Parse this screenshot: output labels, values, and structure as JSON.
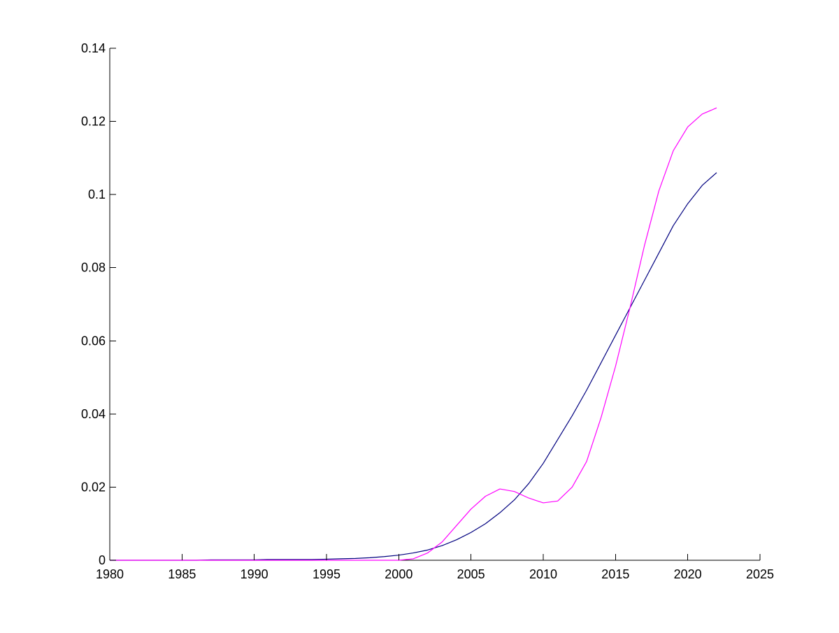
{
  "chart_data": {
    "type": "line",
    "title": "",
    "xlabel": "",
    "ylabel": "",
    "xlim": [
      1980,
      2025
    ],
    "ylim": [
      0,
      0.14
    ],
    "grid": false,
    "x_ticks": [
      1980,
      1985,
      1990,
      1995,
      2000,
      2005,
      2010,
      2015,
      2020,
      2025
    ],
    "x_tick_labels": [
      "1980",
      "1985",
      "1990",
      "1995",
      "2000",
      "2005",
      "2010",
      "2015",
      "2020",
      "2025"
    ],
    "y_ticks": [
      0,
      0.02,
      0.04,
      0.06,
      0.08,
      0.1,
      0.12,
      0.14
    ],
    "y_tick_labels": [
      "0",
      "0.02",
      "0.04",
      "0.06",
      "0.08",
      "0.1",
      "0.12",
      "0.14"
    ],
    "x": [
      1980,
      1981,
      1982,
      1983,
      1984,
      1985,
      1986,
      1987,
      1988,
      1989,
      1990,
      1991,
      1992,
      1993,
      1994,
      1995,
      1996,
      1997,
      1998,
      1999,
      2000,
      2001,
      2002,
      2003,
      2004,
      2005,
      2006,
      2007,
      2008,
      2009,
      2010,
      2011,
      2012,
      2013,
      2014,
      2015,
      2016,
      2017,
      2018,
      2019,
      2020,
      2021,
      2022
    ],
    "series": [
      {
        "color": "#00007f",
        "values": [
          0.0,
          0.0,
          0.0,
          0.0,
          0.0,
          0.0,
          0.0,
          0.0001,
          0.0001,
          0.0001,
          0.0001,
          0.0002,
          0.0002,
          0.0002,
          0.0002,
          0.0003,
          0.0004,
          0.0005,
          0.0007,
          0.001,
          0.0014,
          0.002,
          0.0028,
          0.004,
          0.0056,
          0.0076,
          0.01,
          0.013,
          0.0165,
          0.021,
          0.0265,
          0.033,
          0.0395,
          0.0465,
          0.054,
          0.0615,
          0.069,
          0.0765,
          0.084,
          0.0915,
          0.0975,
          0.1025,
          0.106
        ]
      },
      {
        "color": "#ff00ff",
        "values": [
          0.0,
          0.0,
          0.0,
          0.0,
          0.0,
          0.0,
          0.0,
          0.0,
          0.0,
          0.0,
          0.0,
          0.0,
          0.0,
          0.0,
          0.0,
          0.0,
          0.0,
          0.0,
          0.0,
          0.0,
          0.0,
          0.0004,
          0.002,
          0.005,
          0.0095,
          0.014,
          0.0175,
          0.0195,
          0.0188,
          0.017,
          0.0157,
          0.0162,
          0.02,
          0.027,
          0.039,
          0.053,
          0.069,
          0.086,
          0.101,
          0.112,
          0.1185,
          0.122,
          0.1237
        ]
      }
    ]
  }
}
